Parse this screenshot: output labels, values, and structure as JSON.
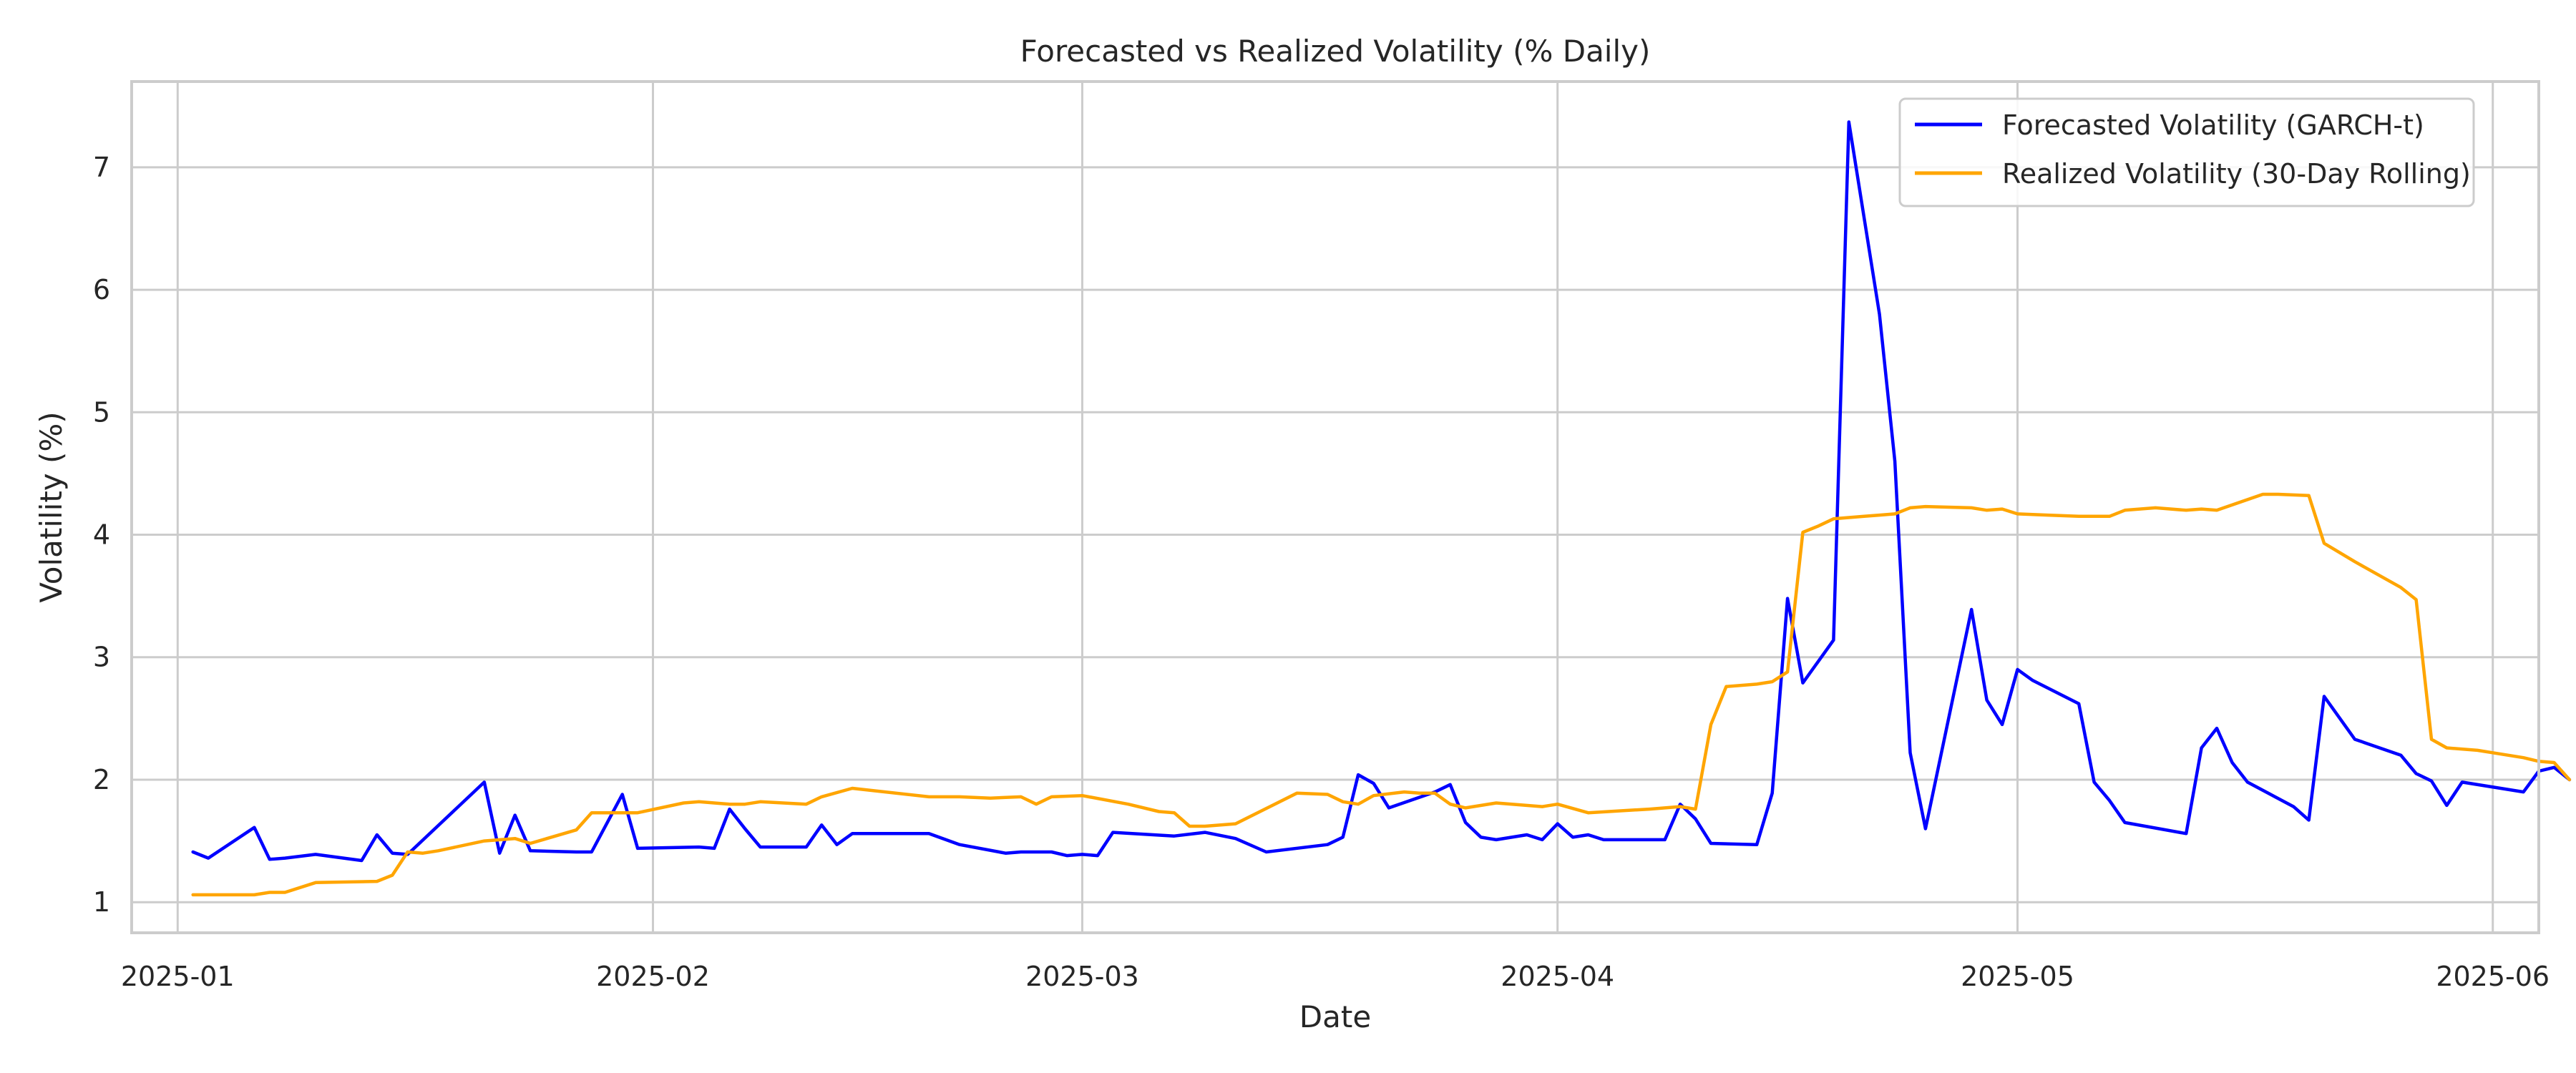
{
  "chart_data": {
    "type": "line",
    "title": "Forecasted vs Realized Volatility (% Daily)",
    "xlabel": "Date",
    "ylabel": "Volatility (%)",
    "x_ticks": [
      "2025-01-01",
      "2025-02-01",
      "2025-03-01",
      "2025-04-01",
      "2025-05-01",
      "2025-06-01"
    ],
    "x_tick_labels": [
      "2025-01",
      "2025-02",
      "2025-03",
      "2025-04",
      "2025-05",
      "2025-06"
    ],
    "y_ticks": [
      1,
      2,
      3,
      4,
      5,
      6,
      7
    ],
    "xlim": [
      "2024-12-29",
      "2025-06-04"
    ],
    "ylim": [
      0.75,
      7.7
    ],
    "grid": true,
    "legend_position": "top-right",
    "series": [
      {
        "name": "Forecasted Volatility (GARCH-t)",
        "color": "#0000ff",
        "points": [
          [
            "2025-01-02",
            1.41
          ],
          [
            "2025-01-03",
            1.36
          ],
          [
            "2025-01-06",
            1.61
          ],
          [
            "2025-01-07",
            1.35
          ],
          [
            "2025-01-08",
            1.36
          ],
          [
            "2025-01-10",
            1.39
          ],
          [
            "2025-01-13",
            1.34
          ],
          [
            "2025-01-14",
            1.55
          ],
          [
            "2025-01-15",
            1.4
          ],
          [
            "2025-01-16",
            1.39
          ],
          [
            "2025-01-21",
            1.98
          ],
          [
            "2025-01-22",
            1.4
          ],
          [
            "2025-01-23",
            1.71
          ],
          [
            "2025-01-24",
            1.42
          ],
          [
            "2025-01-27",
            1.41
          ],
          [
            "2025-01-28",
            1.41
          ],
          [
            "2025-01-30",
            1.88
          ],
          [
            "2025-01-31",
            1.44
          ],
          [
            "2025-02-04",
            1.45
          ],
          [
            "2025-02-05",
            1.44
          ],
          [
            "2025-02-06",
            1.76
          ],
          [
            "2025-02-07",
            1.6
          ],
          [
            "2025-02-08",
            1.45
          ],
          [
            "2025-02-11",
            1.45
          ],
          [
            "2025-02-12",
            1.63
          ],
          [
            "2025-02-13",
            1.47
          ],
          [
            "2025-02-14",
            1.56
          ],
          [
            "2025-02-19",
            1.56
          ],
          [
            "2025-02-21",
            1.47
          ],
          [
            "2025-02-24",
            1.4
          ],
          [
            "2025-02-25",
            1.41
          ],
          [
            "2025-02-27",
            1.41
          ],
          [
            "2025-02-28",
            1.38
          ],
          [
            "2025-03-01",
            1.39
          ],
          [
            "2025-03-02",
            1.38
          ],
          [
            "2025-03-03",
            1.57
          ],
          [
            "2025-03-07",
            1.54
          ],
          [
            "2025-03-09",
            1.57
          ],
          [
            "2025-03-11",
            1.52
          ],
          [
            "2025-03-13",
            1.41
          ],
          [
            "2025-03-17",
            1.47
          ],
          [
            "2025-03-18",
            1.53
          ],
          [
            "2025-03-19",
            2.04
          ],
          [
            "2025-03-20",
            1.97
          ],
          [
            "2025-03-21",
            1.77
          ],
          [
            "2025-03-24",
            1.9
          ],
          [
            "2025-03-25",
            1.96
          ],
          [
            "2025-03-26",
            1.65
          ],
          [
            "2025-03-27",
            1.53
          ],
          [
            "2025-03-28",
            1.51
          ],
          [
            "2025-03-30",
            1.55
          ],
          [
            "2025-03-31",
            1.51
          ],
          [
            "2025-04-01",
            1.64
          ],
          [
            "2025-04-02",
            1.53
          ],
          [
            "2025-04-03",
            1.55
          ],
          [
            "2025-04-04",
            1.51
          ],
          [
            "2025-04-07",
            1.51
          ],
          [
            "2025-04-08",
            1.51
          ],
          [
            "2025-04-09",
            1.8
          ],
          [
            "2025-04-10",
            1.68
          ],
          [
            "2025-04-11",
            1.48
          ],
          [
            "2025-04-14",
            1.47
          ],
          [
            "2025-04-15",
            1.89
          ],
          [
            "2025-04-16",
            3.48
          ],
          [
            "2025-04-17",
            2.79
          ],
          [
            "2025-04-19",
            3.14
          ],
          [
            "2025-04-20",
            7.37
          ],
          [
            "2025-04-22",
            5.8
          ],
          [
            "2025-04-23",
            4.6
          ],
          [
            "2025-04-24",
            2.22
          ],
          [
            "2025-04-25",
            1.6
          ],
          [
            "2025-04-28",
            3.39
          ],
          [
            "2025-04-29",
            2.65
          ],
          [
            "2025-04-30",
            2.45
          ],
          [
            "2025-05-01",
            2.9
          ],
          [
            "2025-05-02",
            2.81
          ],
          [
            "2025-05-05",
            2.62
          ],
          [
            "2025-05-06",
            1.98
          ],
          [
            "2025-05-07",
            1.83
          ],
          [
            "2025-05-08",
            1.65
          ],
          [
            "2025-05-12",
            1.56
          ],
          [
            "2025-05-13",
            2.26
          ],
          [
            "2025-05-14",
            2.42
          ],
          [
            "2025-05-15",
            2.14
          ],
          [
            "2025-05-16",
            1.98
          ],
          [
            "2025-05-19",
            1.78
          ],
          [
            "2025-05-20",
            1.67
          ],
          [
            "2025-05-21",
            2.68
          ],
          [
            "2025-05-23",
            2.33
          ],
          [
            "2025-05-26",
            2.2
          ],
          [
            "2025-05-27",
            2.05
          ],
          [
            "2025-05-28",
            1.99
          ],
          [
            "2025-05-29",
            1.79
          ],
          [
            "2025-05-30",
            1.98
          ],
          [
            "2025-06-03",
            1.9
          ],
          [
            "2025-06-04",
            2.07
          ],
          [
            "2025-06-05",
            2.1
          ],
          [
            "2025-06-06",
            2.0
          ]
        ]
      },
      {
        "name": "Realized Volatility (30-Day Rolling)",
        "color": "#ffa500",
        "points": [
          [
            "2025-01-02",
            1.06
          ],
          [
            "2025-01-06",
            1.06
          ],
          [
            "2025-01-07",
            1.08
          ],
          [
            "2025-01-08",
            1.08
          ],
          [
            "2025-01-10",
            1.16
          ],
          [
            "2025-01-14",
            1.17
          ],
          [
            "2025-01-15",
            1.22
          ],
          [
            "2025-01-16",
            1.41
          ],
          [
            "2025-01-17",
            1.4
          ],
          [
            "2025-01-18",
            1.42
          ],
          [
            "2025-01-21",
            1.5
          ],
          [
            "2025-01-23",
            1.52
          ],
          [
            "2025-01-24",
            1.48
          ],
          [
            "2025-01-27",
            1.59
          ],
          [
            "2025-01-28",
            1.73
          ],
          [
            "2025-01-31",
            1.73
          ],
          [
            "2025-02-03",
            1.81
          ],
          [
            "2025-02-04",
            1.82
          ],
          [
            "2025-02-05",
            1.81
          ],
          [
            "2025-02-06",
            1.8
          ],
          [
            "2025-02-07",
            1.8
          ],
          [
            "2025-02-08",
            1.82
          ],
          [
            "2025-02-11",
            1.8
          ],
          [
            "2025-02-12",
            1.86
          ],
          [
            "2025-02-14",
            1.93
          ],
          [
            "2025-02-19",
            1.86
          ],
          [
            "2025-02-21",
            1.86
          ],
          [
            "2025-02-23",
            1.85
          ],
          [
            "2025-02-25",
            1.86
          ],
          [
            "2025-02-26",
            1.8
          ],
          [
            "2025-02-27",
            1.86
          ],
          [
            "2025-03-01",
            1.87
          ],
          [
            "2025-03-04",
            1.8
          ],
          [
            "2025-03-06",
            1.74
          ],
          [
            "2025-03-07",
            1.73
          ],
          [
            "2025-03-08",
            1.62
          ],
          [
            "2025-03-09",
            1.62
          ],
          [
            "2025-03-11",
            1.64
          ],
          [
            "2025-03-15",
            1.89
          ],
          [
            "2025-03-17",
            1.88
          ],
          [
            "2025-03-18",
            1.82
          ],
          [
            "2025-03-19",
            1.8
          ],
          [
            "2025-03-20",
            1.87
          ],
          [
            "2025-03-22",
            1.9
          ],
          [
            "2025-03-23",
            1.89
          ],
          [
            "2025-03-24",
            1.89
          ],
          [
            "2025-03-25",
            1.8
          ],
          [
            "2025-03-26",
            1.77
          ],
          [
            "2025-03-28",
            1.81
          ],
          [
            "2025-03-31",
            1.78
          ],
          [
            "2025-04-01",
            1.8
          ],
          [
            "2025-04-03",
            1.73
          ],
          [
            "2025-04-07",
            1.76
          ],
          [
            "2025-04-08",
            1.77
          ],
          [
            "2025-04-09",
            1.78
          ],
          [
            "2025-04-10",
            1.76
          ],
          [
            "2025-04-11",
            2.45
          ],
          [
            "2025-04-12",
            2.76
          ],
          [
            "2025-04-14",
            2.78
          ],
          [
            "2025-04-15",
            2.8
          ],
          [
            "2025-04-16",
            2.88
          ],
          [
            "2025-04-17",
            4.02
          ],
          [
            "2025-04-18",
            4.07
          ],
          [
            "2025-04-19",
            4.13
          ],
          [
            "2025-04-21",
            4.15
          ],
          [
            "2025-04-22",
            4.16
          ],
          [
            "2025-04-23",
            4.17
          ],
          [
            "2025-04-24",
            4.22
          ],
          [
            "2025-04-25",
            4.23
          ],
          [
            "2025-04-28",
            4.22
          ],
          [
            "2025-04-29",
            4.2
          ],
          [
            "2025-04-30",
            4.21
          ],
          [
            "2025-05-01",
            4.17
          ],
          [
            "2025-05-03",
            4.16
          ],
          [
            "2025-05-05",
            4.15
          ],
          [
            "2025-05-07",
            4.15
          ],
          [
            "2025-05-08",
            4.2
          ],
          [
            "2025-05-10",
            4.22
          ],
          [
            "2025-05-12",
            4.2
          ],
          [
            "2025-05-13",
            4.21
          ],
          [
            "2025-05-14",
            4.2
          ],
          [
            "2025-05-17",
            4.33
          ],
          [
            "2025-05-18",
            4.33
          ],
          [
            "2025-05-20",
            4.32
          ],
          [
            "2025-05-21",
            3.93
          ],
          [
            "2025-05-23",
            3.78
          ],
          [
            "2025-05-25",
            3.64
          ],
          [
            "2025-05-26",
            3.57
          ],
          [
            "2025-05-27",
            3.47
          ],
          [
            "2025-05-28",
            2.33
          ],
          [
            "2025-05-29",
            2.26
          ],
          [
            "2025-05-31",
            2.24
          ],
          [
            "2025-06-01",
            2.22
          ],
          [
            "2025-06-03",
            2.18
          ],
          [
            "2025-06-04",
            2.15
          ],
          [
            "2025-06-05",
            2.14
          ],
          [
            "2025-06-06",
            2.0
          ]
        ]
      }
    ]
  }
}
